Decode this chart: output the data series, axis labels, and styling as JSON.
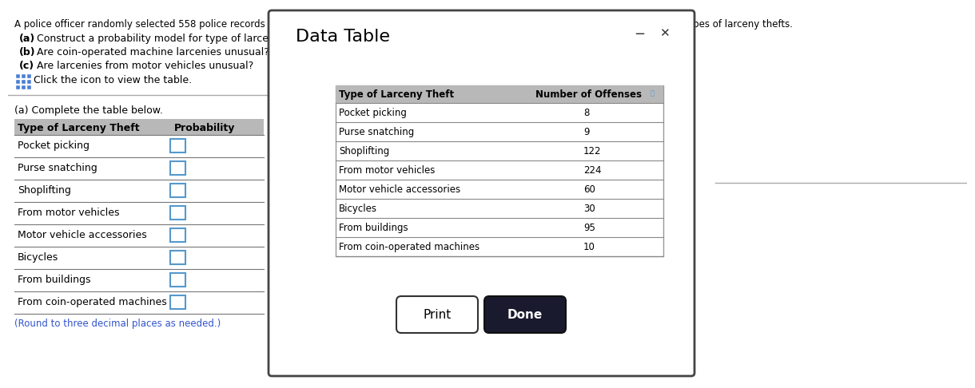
{
  "title_text": "A police officer randomly selected 558 police records of larceny thefts. The accompanying data represent the number of offenses for various types of larceny thefts.",
  "q_a": "Construct a probability model for type of larceny theft.",
  "q_b": "Are coin-operated machine larcenies unusual?",
  "q_c": "Are larcenies from motor vehicles unusual?",
  "click_text": "Click the icon to view the table.",
  "section_a_label": "(a) Complete the table below.",
  "left_table_header": [
    "Type of Larceny Theft",
    "Probability"
  ],
  "left_table_rows": [
    "Pocket picking",
    "Purse snatching",
    "Shoplifting",
    "From motor vehicles",
    "Motor vehicle accessories",
    "Bicycles",
    "From buildings",
    "From coin-operated machines"
  ],
  "round_note": "(Round to three decimal places as needed.)",
  "dialog_title": "Data Table",
  "dialog_table_header": [
    "Type of Larceny Theft",
    "Number of Offenses"
  ],
  "dialog_table_rows": [
    [
      "Pocket picking",
      "8"
    ],
    [
      "Purse snatching",
      "9"
    ],
    [
      "Shoplifting",
      "122"
    ],
    [
      "From motor vehicles",
      "224"
    ],
    [
      "Motor vehicle accessories",
      "60"
    ],
    [
      "Bicycles",
      "30"
    ],
    [
      "From buildings",
      "95"
    ],
    [
      "From coin-operated machines",
      "10"
    ]
  ],
  "print_btn_text": "Print",
  "done_btn_text": "Done",
  "bg_color": "#ffffff",
  "header_bg": "#b8b8b8",
  "row_line_color": "#777777",
  "blue_checkbox_color": "#5599cc",
  "blue_text_color": "#3355cc",
  "icon_color": "#4a7fd4",
  "dialog_border_color": "#444444",
  "done_btn_color": "#1a1a2e"
}
